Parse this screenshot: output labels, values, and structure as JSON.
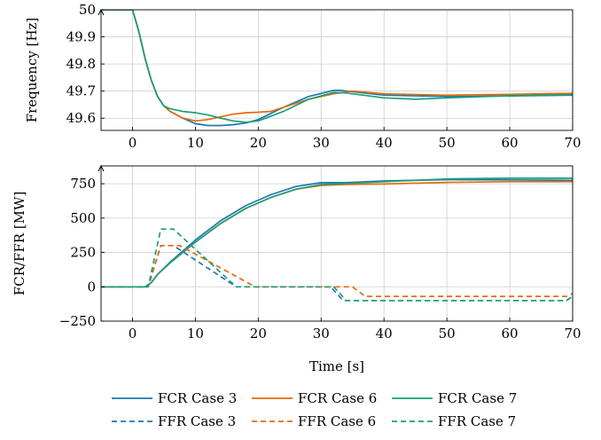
{
  "chart_data": [
    {
      "type": "line",
      "ylabel": "Frequency [Hz]",
      "xlim": [
        -5,
        70
      ],
      "ylim": [
        49.555,
        50
      ],
      "xticks": [
        0,
        10,
        20,
        30,
        40,
        50,
        60,
        70
      ],
      "yticks": [
        49.6,
        49.7,
        49.8,
        49.9,
        50
      ],
      "ytick_labels": [
        "49.6",
        "49.7",
        "49.8",
        "49.9",
        "50"
      ],
      "grid": true,
      "series": [
        {
          "name": "FCR Case 3",
          "color": "#1f77b4",
          "style": "solid",
          "x": [
            -5,
            0,
            1,
            2,
            3,
            4,
            5,
            6,
            8,
            10,
            12,
            14,
            16,
            18,
            20,
            24,
            28,
            32,
            33,
            36,
            40,
            50,
            60,
            70
          ],
          "y": [
            50,
            50,
            49.92,
            49.82,
            49.74,
            49.68,
            49.645,
            49.625,
            49.6,
            49.58,
            49.573,
            49.573,
            49.576,
            49.582,
            49.595,
            49.64,
            49.68,
            49.703,
            49.703,
            49.695,
            49.685,
            49.68,
            49.682,
            49.685
          ]
        },
        {
          "name": "FCR Case 6",
          "color": "#e36c0a",
          "style": "solid",
          "x": [
            -5,
            0,
            1,
            2,
            3,
            4,
            5,
            6,
            8,
            10,
            12,
            14,
            16,
            18,
            20,
            22,
            24,
            28,
            32,
            35,
            40,
            50,
            60,
            70
          ],
          "y": [
            50,
            50,
            49.92,
            49.82,
            49.74,
            49.68,
            49.645,
            49.625,
            49.6,
            49.59,
            49.595,
            49.605,
            49.615,
            49.62,
            49.622,
            49.625,
            49.64,
            49.67,
            49.69,
            49.7,
            49.69,
            49.685,
            49.688,
            49.692
          ]
        },
        {
          "name": "FCR Case 7",
          "color": "#1a9e77",
          "style": "solid",
          "x": [
            -5,
            0,
            1,
            2,
            3,
            4,
            5,
            6,
            8,
            10,
            12,
            14,
            16,
            18,
            20,
            24,
            28,
            32,
            34,
            40,
            45,
            50,
            60,
            70
          ],
          "y": [
            50,
            50,
            49.92,
            49.82,
            49.74,
            49.68,
            49.645,
            49.635,
            49.625,
            49.62,
            49.612,
            49.6,
            49.59,
            49.585,
            49.59,
            49.625,
            49.67,
            49.695,
            49.693,
            49.675,
            49.67,
            49.675,
            49.683,
            49.687
          ]
        }
      ]
    },
    {
      "type": "line",
      "ylabel": "FCR/FFR [MW]",
      "xlabel": "Time [s]",
      "xlim": [
        -5,
        70
      ],
      "ylim": [
        -250,
        880
      ],
      "xticks": [
        0,
        10,
        20,
        30,
        40,
        50,
        60,
        70
      ],
      "yticks": [
        -250,
        0,
        250,
        500,
        750
      ],
      "ytick_labels": [
        "−250",
        "0",
        "250",
        "500",
        "750"
      ],
      "grid": true,
      "legend_position": "bottom",
      "series": [
        {
          "name": "FCR Case 3",
          "color": "#1f77b4",
          "style": "solid",
          "x": [
            -5,
            2,
            3,
            4,
            6,
            8,
            10,
            14,
            18,
            22,
            26,
            30,
            34,
            40,
            50,
            60,
            70
          ],
          "y": [
            0,
            0,
            30,
            90,
            180,
            260,
            340,
            480,
            590,
            670,
            730,
            758,
            758,
            770,
            780,
            778,
            775
          ]
        },
        {
          "name": "FCR Case 6",
          "color": "#e36c0a",
          "style": "solid",
          "x": [
            -5,
            2,
            3,
            4,
            6,
            8,
            10,
            14,
            18,
            22,
            26,
            30,
            34,
            40,
            50,
            60,
            70
          ],
          "y": [
            0,
            0,
            30,
            90,
            175,
            250,
            325,
            460,
            570,
            650,
            710,
            738,
            745,
            748,
            760,
            765,
            765
          ]
        },
        {
          "name": "FCR Case 7",
          "color": "#1a9e77",
          "style": "solid",
          "x": [
            -5,
            2,
            3,
            4,
            6,
            8,
            10,
            14,
            18,
            22,
            26,
            30,
            34,
            40,
            50,
            60,
            70
          ],
          "y": [
            0,
            0,
            30,
            90,
            175,
            250,
            325,
            460,
            570,
            650,
            710,
            745,
            752,
            765,
            785,
            790,
            790
          ]
        },
        {
          "name": "FFR Case 3",
          "color": "#1f77b4",
          "style": "dashed",
          "x": [
            -5,
            2.5,
            4.5,
            6.5,
            16.5,
            31.5,
            33.5,
            69,
            70
          ],
          "y": [
            0,
            0,
            300,
            300,
            0,
            0,
            -100,
            -100,
            -70
          ]
        },
        {
          "name": "FFR Case 6",
          "color": "#e36c0a",
          "style": "dashed",
          "x": [
            -5,
            2.5,
            4.5,
            7.5,
            19.5,
            35,
            37,
            69,
            70
          ],
          "y": [
            0,
            0,
            300,
            300,
            0,
            0,
            -70,
            -70,
            -50
          ]
        },
        {
          "name": "FFR Case 7",
          "color": "#1a9e77",
          "style": "dashed",
          "x": [
            -5,
            2.5,
            4.5,
            6.5,
            16.5,
            32,
            34,
            69,
            70
          ],
          "y": [
            0,
            0,
            420,
            420,
            0,
            0,
            -100,
            -100,
            -70
          ]
        }
      ]
    }
  ]
}
